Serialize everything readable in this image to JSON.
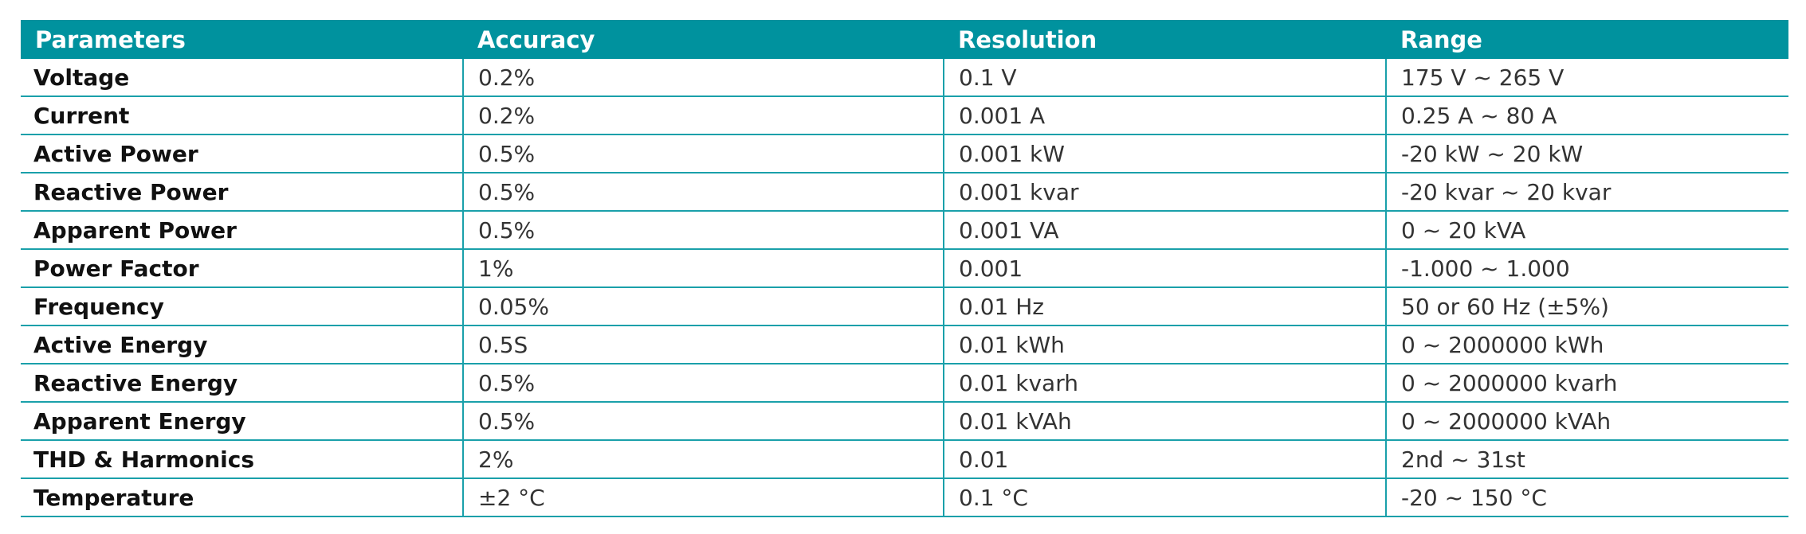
{
  "table": {
    "headers": [
      "Parameters",
      "Accuracy",
      "Resolution",
      "Range"
    ],
    "rows": [
      [
        "Voltage",
        "0.2%",
        "0.1 V",
        "175 V ~ 265 V"
      ],
      [
        "Current",
        "0.2%",
        "0.001 A",
        "0.25 A ~ 80 A"
      ],
      [
        "Active Power",
        "0.5%",
        "0.001 kW",
        "-20 kW ~ 20 kW"
      ],
      [
        "Reactive Power",
        "0.5%",
        "0.001 kvar",
        "-20 kvar ~ 20 kvar"
      ],
      [
        "Apparent Power",
        "0.5%",
        "0.001 VA",
        "0 ~ 20 kVA"
      ],
      [
        "Power Factor",
        "1%",
        "0.001",
        "-1.000 ~ 1.000"
      ],
      [
        "Frequency",
        "0.05%",
        "0.01 Hz",
        "50 or 60 Hz (±5%)"
      ],
      [
        "Active Energy",
        "0.5S",
        "0.01 kWh",
        "0 ~ 2000000 kWh"
      ],
      [
        "Reactive Energy",
        "0.5%",
        "0.01 kvarh",
        "0 ~ 2000000 kvarh"
      ],
      [
        "Apparent Energy",
        "0.5%",
        "0.01 kVAh",
        "0 ~ 2000000 kVAh"
      ],
      [
        "THD & Harmonics",
        "2%",
        "0.01",
        "2nd ~ 31st"
      ],
      [
        "Temperature",
        "±2 °C",
        "0.1 °C",
        "-20 ~ 150 °C"
      ]
    ]
  }
}
